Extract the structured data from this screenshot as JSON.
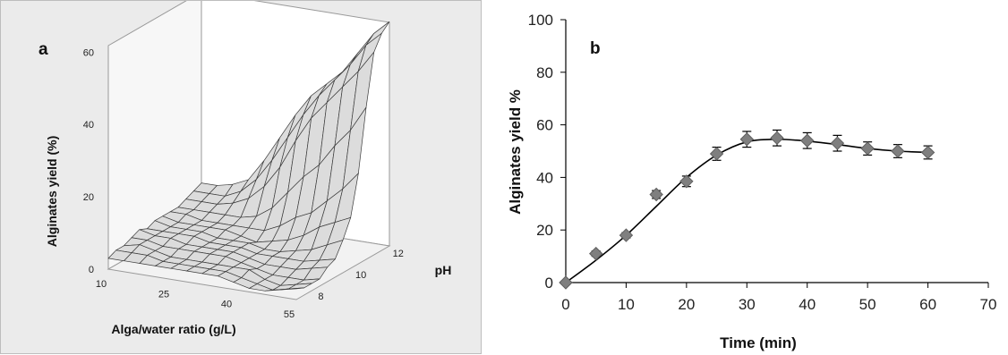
{
  "chart_data": [
    {
      "panel": "a",
      "type": "surface",
      "panel_label": "a",
      "xlabel": "Alga/water ratio (g/L)",
      "ylabel": "pH",
      "zlabel": "Alginates yield (%)",
      "x_ticks": [
        "10",
        "25",
        "40",
        "55"
      ],
      "y_ticks": [
        "8",
        "10",
        "12"
      ],
      "z_ticks": [
        "0",
        "20",
        "40",
        "60"
      ],
      "x_range": [
        10,
        55
      ],
      "y_range": [
        7.5,
        12.5
      ],
      "z_range": [
        0,
        60
      ],
      "grid": "13 x 13 mesh",
      "surface_yield": [
        [
          3,
          3,
          3,
          3,
          3,
          3,
          3,
          3,
          2,
          1,
          1,
          2,
          3
        ],
        [
          4,
          4,
          4,
          3,
          3,
          3,
          3,
          3,
          2,
          1,
          0,
          1,
          2
        ],
        [
          4,
          5,
          4,
          3,
          3,
          3,
          3,
          3,
          3,
          1,
          0,
          1,
          2
        ],
        [
          5,
          5,
          4,
          4,
          4,
          4,
          4,
          3,
          2,
          1,
          1,
          1,
          2
        ],
        [
          6,
          5,
          5,
          4,
          4,
          4,
          4,
          3,
          2,
          2,
          2,
          3,
          4
        ],
        [
          5,
          5,
          5,
          5,
          4,
          4,
          4,
          3,
          3,
          3,
          3,
          4,
          5
        ],
        [
          6,
          5,
          5,
          5,
          4,
          4,
          4,
          3,
          3,
          4,
          5,
          7,
          9
        ],
        [
          6,
          5,
          5,
          5,
          5,
          4,
          3,
          4,
          5,
          7,
          10,
          12,
          14
        ],
        [
          6,
          6,
          5,
          5,
          5,
          5,
          5,
          7,
          10,
          12,
          16,
          20,
          25
        ],
        [
          6,
          6,
          6,
          6,
          6,
          7,
          10,
          15,
          20,
          24,
          30,
          35,
          42
        ],
        [
          7,
          7,
          7,
          8,
          10,
          14,
          20,
          28,
          35,
          40,
          45,
          50,
          56
        ],
        [
          8,
          8,
          8,
          10,
          14,
          20,
          27,
          34,
          40,
          45,
          50,
          56,
          60
        ],
        [
          9,
          9,
          10,
          12,
          18,
          25,
          32,
          38,
          42,
          46,
          52,
          58,
          62
        ]
      ]
    },
    {
      "panel": "b",
      "type": "scatter",
      "panel_label": "b",
      "xlabel": "Time (min)",
      "ylabel": "Alginates yield %",
      "xlim": [
        0,
        70
      ],
      "ylim": [
        0,
        100
      ],
      "x_ticks": [
        0,
        10,
        20,
        30,
        40,
        50,
        60,
        70
      ],
      "y_ticks": [
        0,
        20,
        40,
        60,
        80,
        100
      ],
      "grid": false,
      "legend": "none",
      "marker_color": "#7f7f7f",
      "line_color": "#000000",
      "series": [
        {
          "x": [
            0,
            5,
            10,
            15,
            20,
            25,
            30,
            35,
            40,
            45,
            50,
            55,
            60
          ],
          "y": [
            0,
            11,
            18,
            33.5,
            38.5,
            49,
            54.5,
            55,
            54,
            53,
            51,
            50,
            49.5
          ],
          "error": [
            0,
            1,
            1,
            1.5,
            2,
            2.5,
            3,
            3,
            3,
            3,
            2.5,
            2.5,
            2.5
          ]
        }
      ],
      "fit_curve": {
        "x": [
          0,
          5,
          10,
          15,
          20,
          25,
          30,
          35,
          40,
          45,
          50,
          55,
          60
        ],
        "y": [
          0,
          8.5,
          18,
          29,
          40,
          48.5,
          53.5,
          54.5,
          53.8,
          52.5,
          51,
          50,
          49.5
        ]
      }
    }
  ]
}
